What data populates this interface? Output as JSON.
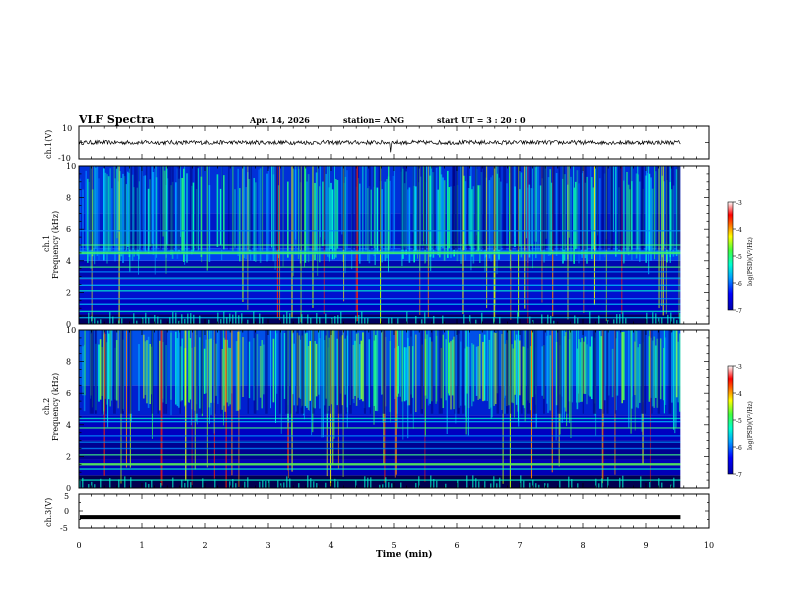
{
  "header": {
    "title": "VLF Spectra",
    "date": "Apr. 14, 2026",
    "station": "station= ANG",
    "start": "start  UT =   3 : 20 : 0"
  },
  "chart_data": [
    {
      "id": "ch1-waveform",
      "type": "line",
      "ylabel": "ch.1(V)",
      "ylim": [
        -10,
        10
      ],
      "yticks": [
        10,
        -10
      ],
      "series": [
        {
          "name": "ch.1",
          "baseline": 0,
          "noise_amplitude": 1.3,
          "spike_at_min": 4.95,
          "spike_min": -6
        }
      ],
      "x_extent_min": [
        0,
        9.8
      ]
    },
    {
      "id": "ch1-spectrogram",
      "type": "heatmap",
      "ylabel_line1": "ch.1",
      "ylabel_line2": "Frequency (kHz)",
      "ylim": [
        0,
        10
      ],
      "yticks": [
        0,
        2,
        4,
        6,
        8,
        10
      ],
      "colorbar": {
        "label": "log(PSD)(V²/Hz)",
        "range": [
          -7,
          -3
        ],
        "ticks": [
          "-3",
          "-4",
          "-5",
          "-6",
          "-7"
        ]
      },
      "bands_khz": [
        0.4,
        0.8,
        1.25,
        1.6,
        2.1,
        2.45,
        2.9,
        3.3,
        3.6,
        4.45,
        4.6,
        5.0,
        5.9
      ],
      "strong_band_khz": 4.5,
      "high_activity_above_khz": 5
    },
    {
      "id": "ch2-spectrogram",
      "type": "heatmap",
      "ylabel_line1": "ch.2",
      "ylabel_line2": "Frequency (kHz)",
      "ylim": [
        0,
        10
      ],
      "yticks": [
        0,
        2,
        4,
        6,
        8,
        10
      ],
      "colorbar": {
        "label": "log(PSD)(V²/Hz)",
        "range": [
          -7,
          -3
        ],
        "ticks": [
          "-3",
          "-4",
          "-5",
          "-6",
          "-7"
        ]
      },
      "bands_khz": [
        0.5,
        1.2,
        1.5,
        2.1,
        2.5,
        2.9,
        3.3,
        3.8,
        4.2,
        4.4
      ],
      "strong_band_khz": 1.5,
      "high_activity_above_khz": 6
    },
    {
      "id": "ch3-waveform",
      "type": "line",
      "ylabel": "ch.3(V)",
      "ylim": [
        -5,
        5
      ],
      "yticks": [
        "5",
        "0",
        "-5"
      ],
      "series": [
        {
          "name": "ch.3",
          "baseline": -1.8
        }
      ],
      "x_extent_min": [
        0,
        9.8
      ]
    }
  ],
  "xaxis": {
    "label": "Time (min)",
    "range": [
      0,
      10
    ],
    "ticks": [
      "0",
      "1",
      "2",
      "3",
      "4",
      "5",
      "6",
      "7",
      "8",
      "9",
      "10"
    ],
    "data_extent_min": 9.8
  },
  "colors": {
    "frame": "#000000",
    "spectrum_scale": [
      "#0000aa",
      "#0000ff",
      "#0060ff",
      "#00c8ff",
      "#00ffc0",
      "#40ff40",
      "#c0ff00",
      "#ffff00",
      "#ff8000",
      "#ff0000",
      "#ffb0b0",
      "#ffffff"
    ]
  }
}
